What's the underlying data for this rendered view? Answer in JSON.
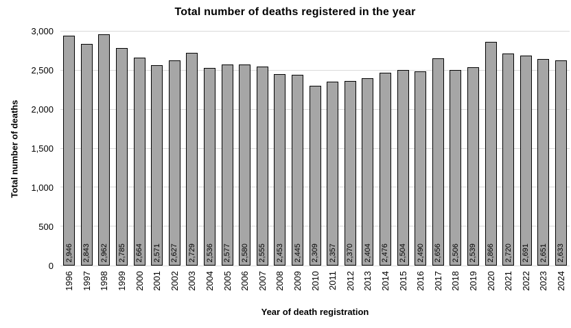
{
  "chart_data": {
    "type": "bar",
    "title": "Total number of deaths registered in the year",
    "xlabel": "Year of death registration",
    "ylabel": "Total number of deaths",
    "categories": [
      "1996",
      "1997",
      "1998",
      "1999",
      "2000",
      "2001",
      "2002",
      "2003",
      "2004",
      "2005",
      "2006",
      "2007",
      "2008",
      "2009",
      "2010",
      "2011",
      "2012",
      "2013",
      "2014",
      "2015",
      "2016",
      "2017",
      "2018",
      "2019",
      "2020",
      "2021",
      "2022",
      "2023",
      "2024"
    ],
    "values": [
      2946,
      2843,
      2962,
      2785,
      2664,
      2571,
      2627,
      2729,
      2536,
      2577,
      2580,
      2555,
      2453,
      2445,
      2309,
      2357,
      2370,
      2404,
      2476,
      2504,
      2490,
      2656,
      2506,
      2539,
      2866,
      2720,
      2691,
      2651,
      2633
    ],
    "value_labels": [
      "2,946",
      "2,843",
      "2,962",
      "2,785",
      "2,664",
      "2,571",
      "2,627",
      "2,729",
      "2,536",
      "2,577",
      "2,580",
      "2,555",
      "2,453",
      "2,445",
      "2,309",
      "2,357",
      "2,370",
      "2,404",
      "2,476",
      "2,504",
      "2,490",
      "2,656",
      "2,506",
      "2,539",
      "2,866",
      "2,720",
      "2,691",
      "2,651",
      "2,633"
    ],
    "ylim": [
      0,
      3000
    ],
    "ytick_step": 500,
    "yticks": [
      "0",
      "500",
      "1,000",
      "1,500",
      "2,000",
      "2,500",
      "3,000"
    ],
    "grid": true,
    "legend": false,
    "value_label_rotation": -90,
    "xtick_rotation": -90,
    "colors": {
      "bar_fill": "#a6a6a6",
      "bar_border": "#000000",
      "gridline": "#d9d9d9",
      "background": "#ffffff",
      "text": "#000000"
    }
  }
}
